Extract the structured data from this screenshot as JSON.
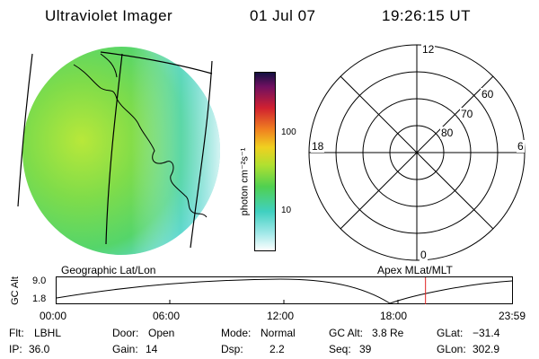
{
  "header": {
    "title": "Ultraviolet Imager",
    "date": "01 Jul 07",
    "time": "19:26:15 UT"
  },
  "colorbar": {
    "label": "photon cm⁻²s⁻¹",
    "ticks": [
      "100",
      "10"
    ]
  },
  "polar": {
    "clock_labels": {
      "top": "12",
      "left": "18",
      "right": "6",
      "bottom": "0"
    },
    "lat_labels": [
      "60",
      "70",
      "80"
    ]
  },
  "timeline": {
    "left_title": "Geographic Lat/Lon",
    "right_title": "Apex MLat/MLT",
    "ylabel": "GC Alt",
    "y_ticks": [
      "9.0",
      "1.8"
    ],
    "x_ticks": [
      "00:00",
      "06:00",
      "12:00",
      "18:00",
      "23:59"
    ],
    "current_time_hours": 19.44
  },
  "info": {
    "row1": [
      {
        "label": "Flt:",
        "value": "LBHL"
      },
      {
        "label": "Door:",
        "value": "Open"
      },
      {
        "label": "Mode:",
        "value": "Normal"
      },
      {
        "label": "GC Alt:",
        "value": "3.8 Re"
      },
      {
        "label": "GLat:",
        "value": "−31.4"
      }
    ],
    "row2": [
      {
        "label": "IP:",
        "value": "36.0"
      },
      {
        "label": "Gain:",
        "value": "14"
      },
      {
        "label": "Dsp:",
        "value": "2.2"
      },
      {
        "label": "Seq:",
        "value": "39"
      },
      {
        "label": "GLon:",
        "value": "302.9"
      }
    ]
  },
  "colors": {
    "disk_main": "#5fd85a",
    "disk_yellow": "#b8e83a",
    "disk_cyan": "#5fd8d0",
    "marker": "#e02020"
  }
}
